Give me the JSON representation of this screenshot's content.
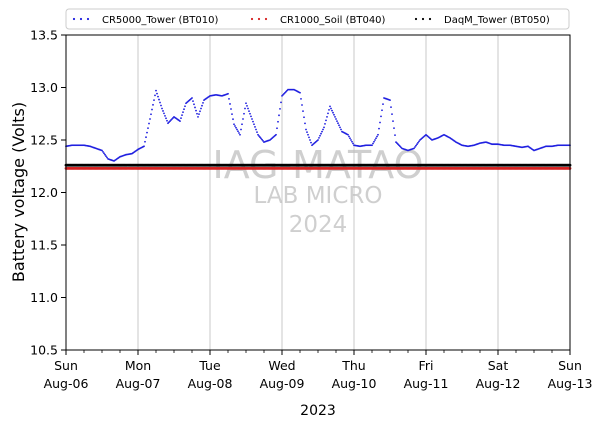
{
  "chart_data": {
    "type": "scatter",
    "title": "",
    "xlabel": "2023",
    "ylabel": "Battery voltage (Volts)",
    "xlim": [
      "2023-08-06T00:00",
      "2023-08-13T00:00"
    ],
    "ylim": [
      10.5,
      13.5
    ],
    "yticks": [
      "10.5",
      "11.0",
      "11.5",
      "12.0",
      "12.5",
      "13.0",
      "13.5"
    ],
    "xticks": [
      {
        "day": "Sun",
        "date": "Aug-06"
      },
      {
        "day": "Mon",
        "date": "Aug-07"
      },
      {
        "day": "Tue",
        "date": "Aug-08"
      },
      {
        "day": "Wed",
        "date": "Aug-09"
      },
      {
        "day": "Thu",
        "date": "Aug-10"
      },
      {
        "day": "Fri",
        "date": "Aug-11"
      },
      {
        "day": "Sat",
        "date": "Aug-12"
      },
      {
        "day": "Sun",
        "date": "Aug-13"
      }
    ],
    "grid": "vertical major gridlines at day boundaries",
    "legend_position": "top",
    "watermark": [
      "IAG-MATAO",
      "LAB MICRO",
      "2024"
    ],
    "series": [
      {
        "name": "CR5000_Tower (BT010)",
        "color": "#1f1fe0",
        "x": [
          "2023-08-06T00:00",
          "2023-08-06T02:00",
          "2023-08-06T04:00",
          "2023-08-06T06:00",
          "2023-08-06T08:00",
          "2023-08-06T10:00",
          "2023-08-06T12:00",
          "2023-08-06T14:00",
          "2023-08-06T16:00",
          "2023-08-06T18:00",
          "2023-08-06T20:00",
          "2023-08-06T22:00",
          "2023-08-07T00:00",
          "2023-08-07T02:00",
          "2023-08-07T04:00",
          "2023-08-07T06:00",
          "2023-08-07T08:00",
          "2023-08-07T10:00",
          "2023-08-07T12:00",
          "2023-08-07T14:00",
          "2023-08-07T16:00",
          "2023-08-07T18:00",
          "2023-08-07T20:00",
          "2023-08-07T22:00",
          "2023-08-08T00:00",
          "2023-08-08T02:00",
          "2023-08-08T04:00",
          "2023-08-08T06:00",
          "2023-08-08T08:00",
          "2023-08-08T10:00",
          "2023-08-08T12:00",
          "2023-08-08T14:00",
          "2023-08-08T16:00",
          "2023-08-08T18:00",
          "2023-08-08T20:00",
          "2023-08-08T22:00",
          "2023-08-09T00:00",
          "2023-08-09T02:00",
          "2023-08-09T04:00",
          "2023-08-09T06:00",
          "2023-08-09T08:00",
          "2023-08-09T10:00",
          "2023-08-09T12:00",
          "2023-08-09T14:00",
          "2023-08-09T16:00",
          "2023-08-09T18:00",
          "2023-08-09T20:00",
          "2023-08-09T22:00",
          "2023-08-10T00:00",
          "2023-08-10T02:00",
          "2023-08-10T04:00",
          "2023-08-10T06:00",
          "2023-08-10T08:00",
          "2023-08-10T10:00",
          "2023-08-10T12:00",
          "2023-08-10T14:00",
          "2023-08-10T16:00",
          "2023-08-10T18:00",
          "2023-08-10T20:00",
          "2023-08-10T22:00",
          "2023-08-11T00:00",
          "2023-08-11T02:00",
          "2023-08-11T04:00",
          "2023-08-11T06:00",
          "2023-08-11T08:00",
          "2023-08-11T10:00",
          "2023-08-11T12:00",
          "2023-08-11T14:00",
          "2023-08-11T16:00",
          "2023-08-11T18:00",
          "2023-08-11T20:00",
          "2023-08-11T22:00",
          "2023-08-12T00:00",
          "2023-08-12T02:00",
          "2023-08-12T04:00",
          "2023-08-12T06:00",
          "2023-08-12T08:00",
          "2023-08-12T10:00",
          "2023-08-12T12:00",
          "2023-08-12T14:00",
          "2023-08-12T16:00",
          "2023-08-12T18:00",
          "2023-08-12T20:00",
          "2023-08-12T22:00",
          "2023-08-13T00:00"
        ],
        "y": [
          12.44,
          12.45,
          12.45,
          12.45,
          12.44,
          12.42,
          12.4,
          12.32,
          12.3,
          12.34,
          12.36,
          12.37,
          12.41,
          12.44,
          12.7,
          12.97,
          12.8,
          12.66,
          12.72,
          12.68,
          12.85,
          12.9,
          12.72,
          12.88,
          12.92,
          12.93,
          12.92,
          12.94,
          12.65,
          12.55,
          12.85,
          12.7,
          12.55,
          12.48,
          12.5,
          12.55,
          12.92,
          12.98,
          12.98,
          12.95,
          12.6,
          12.45,
          12.5,
          12.62,
          12.82,
          12.7,
          12.58,
          12.55,
          12.45,
          12.44,
          12.45,
          12.45,
          12.55,
          12.9,
          12.88,
          12.48,
          12.42,
          12.4,
          12.42,
          12.5,
          12.55,
          12.5,
          12.52,
          12.55,
          12.52,
          12.48,
          12.45,
          12.44,
          12.45,
          12.47,
          12.48,
          12.46,
          12.46,
          12.45,
          12.45,
          12.44,
          12.43,
          12.44,
          12.4,
          12.42,
          12.44,
          12.44,
          12.45,
          12.45,
          12.45
        ]
      },
      {
        "name": "CR1000_Soil (BT040)",
        "color": "#d62020",
        "x": [
          "2023-08-06T00:00",
          "2023-08-13T00:00"
        ],
        "y": [
          12.23,
          12.23
        ]
      },
      {
        "name": "DaqM_Tower (BT050)",
        "color": "#000000",
        "x": [
          "2023-08-06T00:00",
          "2023-08-13T00:00"
        ],
        "y": [
          12.26,
          12.26
        ]
      }
    ]
  }
}
